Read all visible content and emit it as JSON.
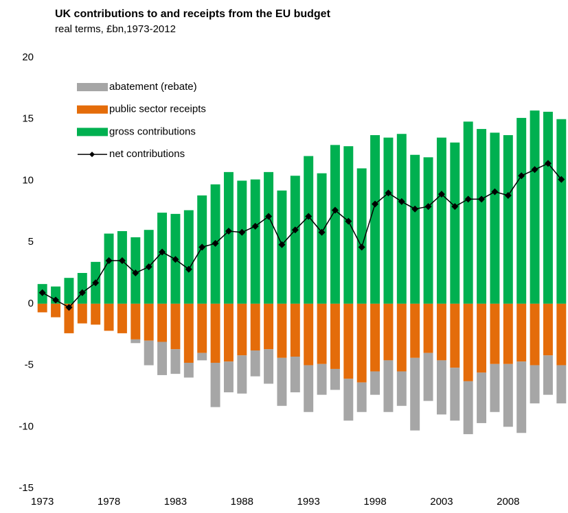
{
  "chart_data": {
    "type": "bar",
    "title": "UK contributions to and receipts from the EU budget",
    "subtitle": "real terms, £bn,1973-2012",
    "categories": [
      "1973",
      null,
      null,
      null,
      null,
      "1978",
      null,
      null,
      null,
      null,
      "1983",
      null,
      null,
      null,
      null,
      "1988",
      null,
      null,
      null,
      null,
      "1993",
      null,
      null,
      null,
      null,
      "1998",
      null,
      null,
      null,
      null,
      "2003",
      null,
      null,
      null,
      null,
      "2008",
      null,
      null,
      null,
      null
    ],
    "series": [
      {
        "name": "abatement (rebate)",
        "color": "#a6a6a6",
        "stack": "neg",
        "values": [
          0,
          0,
          0,
          0,
          0,
          0,
          0,
          -0.3,
          -2.0,
          -2.7,
          -2.0,
          -1.2,
          -0.6,
          -3.6,
          -2.5,
          -3.1,
          -2.1,
          -2.8,
          -3.9,
          -2.9,
          -3.8,
          -2.5,
          -1.7,
          -3.4,
          -2.4,
          -1.9,
          -4.2,
          -2.8,
          -5.9,
          -3.9,
          -4.4,
          -4.3,
          -4.3,
          -4.1,
          -3.9,
          -5.1,
          -5.8,
          -3.1,
          -3.2,
          -3.1
        ]
      },
      {
        "name": "public sector receipts",
        "color": "#e46c0a",
        "stack": "neg",
        "values": [
          -0.7,
          -1.1,
          -2.4,
          -1.6,
          -1.7,
          -2.2,
          -2.4,
          -2.9,
          -3.0,
          -3.1,
          -3.7,
          -4.8,
          -4.0,
          -4.8,
          -4.7,
          -4.2,
          -3.8,
          -3.7,
          -4.4,
          -4.3,
          -5.0,
          -4.9,
          -5.3,
          -6.1,
          -6.4,
          -5.5,
          -4.6,
          -5.5,
          -4.4,
          -4.0,
          -4.6,
          -5.2,
          -6.3,
          -5.6,
          -4.9,
          -4.9,
          -4.7,
          -5.0,
          -4.2,
          -5.0
        ]
      },
      {
        "name": "gross contributions",
        "color": "#00b050",
        "stack": "pos",
        "values": [
          1.6,
          1.4,
          2.1,
          2.5,
          3.4,
          5.7,
          5.9,
          5.4,
          6.0,
          7.4,
          7.3,
          7.6,
          8.8,
          9.7,
          10.7,
          10.0,
          10.1,
          10.7,
          9.2,
          10.4,
          12.0,
          10.6,
          12.9,
          12.8,
          11.0,
          13.7,
          13.5,
          13.8,
          12.1,
          11.9,
          13.5,
          13.1,
          14.8,
          14.2,
          13.9,
          13.7,
          15.1,
          15.7,
          15.6,
          15.0
        ]
      },
      {
        "name": "net contributions",
        "color": "#000000",
        "type": "line",
        "values": [
          0.9,
          0.3,
          -0.3,
          0.9,
          1.7,
          3.5,
          3.5,
          2.5,
          3.0,
          4.2,
          3.6,
          2.8,
          4.6,
          4.9,
          5.9,
          5.8,
          6.3,
          7.1,
          4.8,
          6.0,
          7.1,
          5.8,
          7.6,
          6.7,
          4.6,
          8.1,
          9.0,
          8.3,
          7.7,
          7.9,
          8.9,
          7.9,
          8.5,
          8.5,
          9.1,
          8.8,
          10.4,
          10.9,
          11.4,
          10.1
        ]
      }
    ],
    "ylim": [
      -15,
      20
    ],
    "yticks": [
      20,
      15,
      10,
      5,
      0,
      -5,
      -10,
      -15
    ],
    "grid": false,
    "legend": "upper left"
  }
}
